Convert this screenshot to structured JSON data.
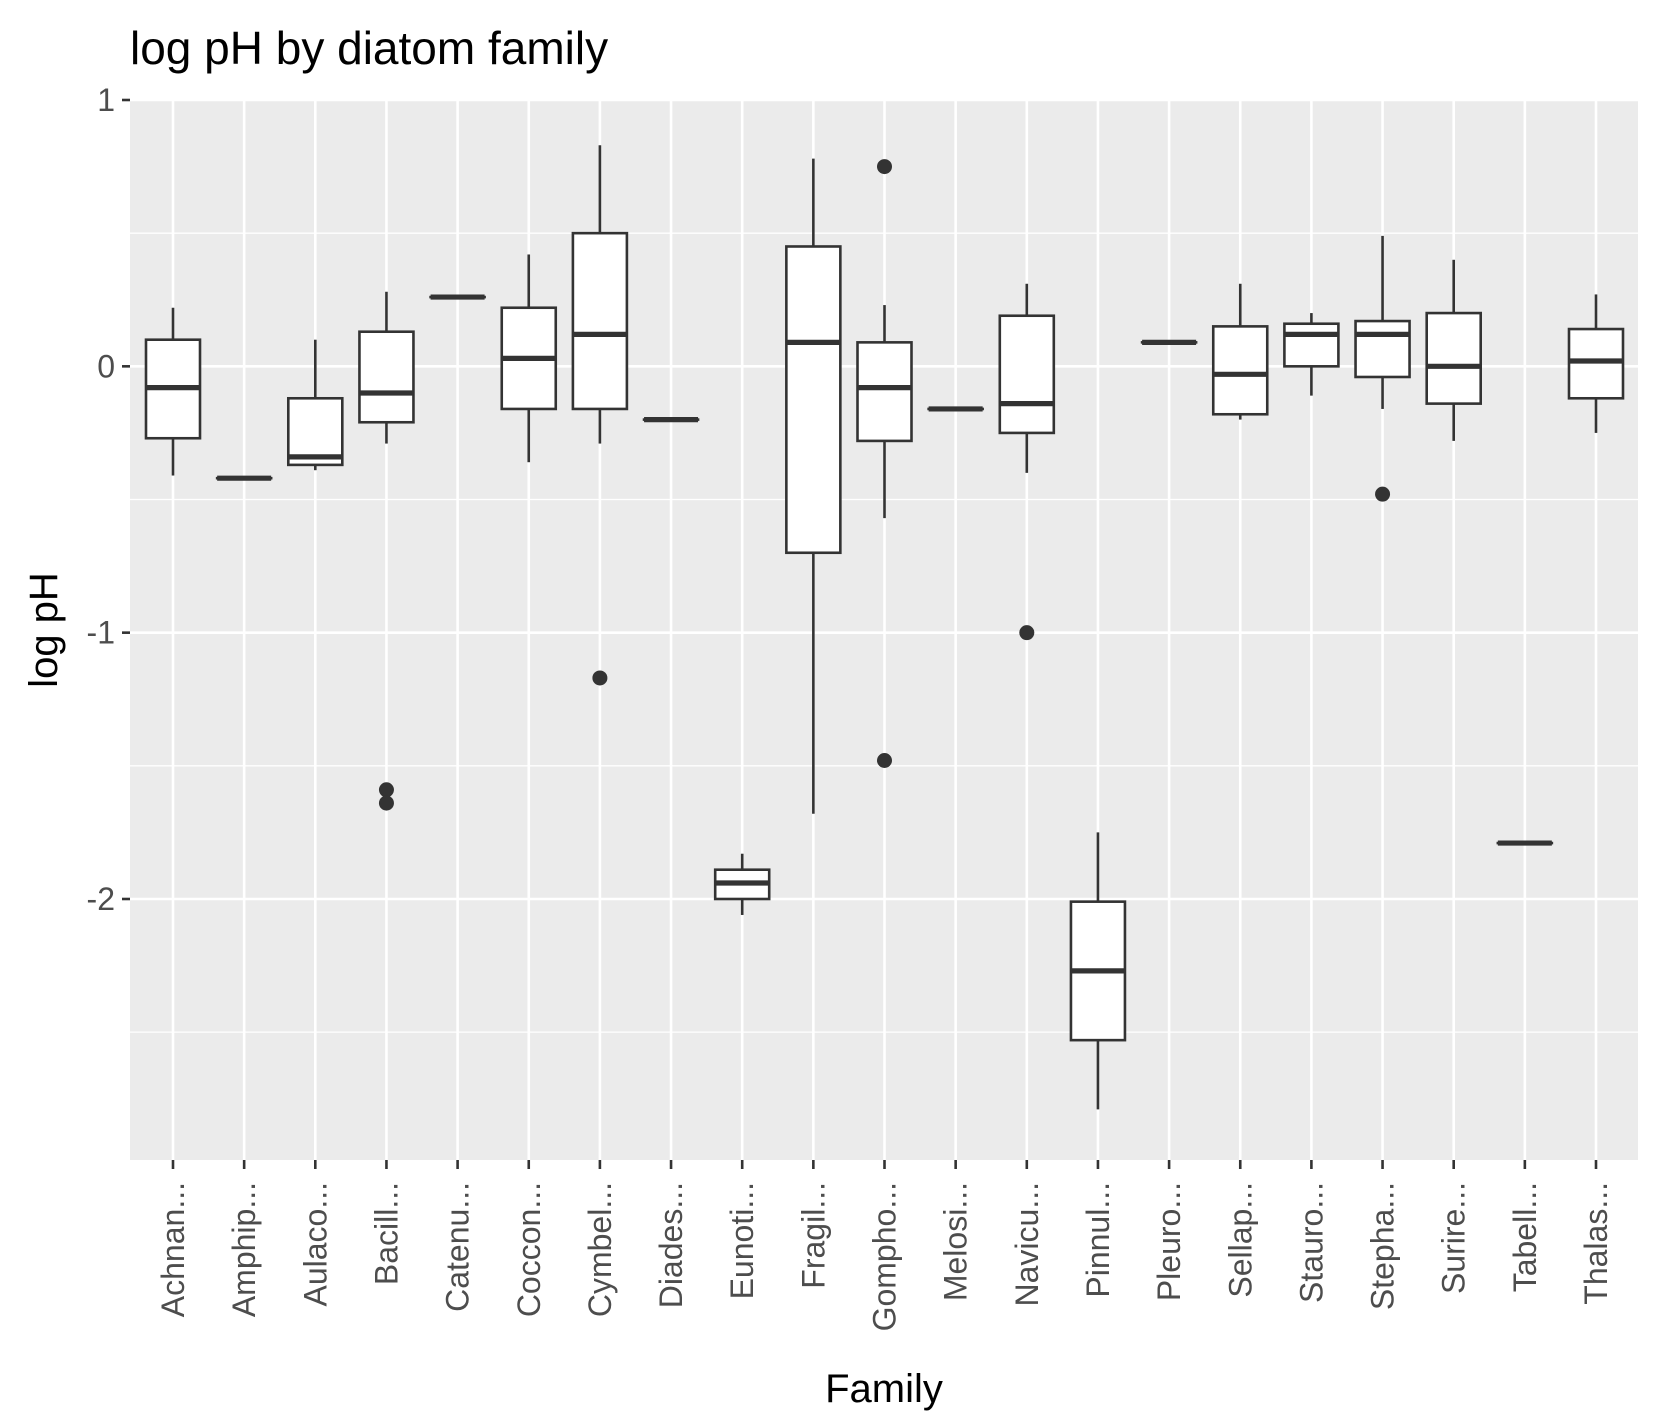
{
  "chart_data": {
    "type": "boxplot",
    "title": "log pH by diatom family",
    "xlabel": "Family",
    "ylabel": "log pH",
    "ylim": [
      -2.98,
      1.0
    ],
    "yticks": [
      1,
      0,
      -1,
      -2
    ],
    "ytick_labels": [
      "1",
      "0",
      "-1",
      "-2"
    ],
    "grid": true,
    "legend": "none",
    "colors": {
      "panel_background": "#ebebeb",
      "grid_major": "#ffffff",
      "box_fill": "#ffffff",
      "box_stroke": "#333333",
      "tick_text": "#4d4d4d"
    },
    "categories": [
      "Achnan...",
      "Amphip...",
      "Aulaco...",
      "Bacill...",
      "Catenu...",
      "Coccon...",
      "Cymbel...",
      "Diades...",
      "Eunoti...",
      "Fragil...",
      "Gompho...",
      "Melosi...",
      "Navicu...",
      "Pinnul...",
      "Pleuro...",
      "Sellap...",
      "Stauro...",
      "Stepha...",
      "Surire...",
      "Tabell...",
      "Thalas..."
    ],
    "boxes": [
      {
        "min": -0.41,
        "q1": -0.27,
        "median": -0.08,
        "q3": 0.1,
        "max": 0.22,
        "outliers": []
      },
      {
        "min": -0.42,
        "q1": -0.42,
        "median": -0.42,
        "q3": -0.42,
        "max": -0.42,
        "outliers": []
      },
      {
        "min": -0.39,
        "q1": -0.37,
        "median": -0.34,
        "q3": -0.12,
        "max": 0.1,
        "outliers": []
      },
      {
        "min": -0.29,
        "q1": -0.21,
        "median": -0.1,
        "q3": 0.13,
        "max": 0.28,
        "outliers": [
          -1.59,
          -1.64
        ]
      },
      {
        "min": 0.26,
        "q1": 0.26,
        "median": 0.26,
        "q3": 0.26,
        "max": 0.26,
        "outliers": []
      },
      {
        "min": -0.36,
        "q1": -0.16,
        "median": 0.03,
        "q3": 0.22,
        "max": 0.42,
        "outliers": []
      },
      {
        "min": -0.29,
        "q1": -0.16,
        "median": 0.12,
        "q3": 0.5,
        "max": 0.83,
        "outliers": [
          -1.17
        ]
      },
      {
        "min": -0.2,
        "q1": -0.2,
        "median": -0.2,
        "q3": -0.2,
        "max": -0.2,
        "outliers": []
      },
      {
        "min": -2.06,
        "q1": -2.0,
        "median": -1.94,
        "q3": -1.89,
        "max": -1.83,
        "outliers": []
      },
      {
        "min": -1.68,
        "q1": -0.7,
        "median": 0.09,
        "q3": 0.45,
        "max": 0.78,
        "outliers": []
      },
      {
        "min": -0.57,
        "q1": -0.28,
        "median": -0.08,
        "q3": 0.09,
        "max": 0.23,
        "outliers": [
          0.75,
          -1.48
        ]
      },
      {
        "min": -0.16,
        "q1": -0.16,
        "median": -0.16,
        "q3": -0.16,
        "max": -0.16,
        "outliers": []
      },
      {
        "min": -0.4,
        "q1": -0.25,
        "median": -0.14,
        "q3": 0.19,
        "max": 0.31,
        "outliers": [
          -1.0
        ]
      },
      {
        "min": -2.79,
        "q1": -2.53,
        "median": -2.27,
        "q3": -2.01,
        "max": -1.75,
        "outliers": []
      },
      {
        "min": 0.09,
        "q1": 0.09,
        "median": 0.09,
        "q3": 0.09,
        "max": 0.09,
        "outliers": []
      },
      {
        "min": -0.2,
        "q1": -0.18,
        "median": -0.03,
        "q3": 0.15,
        "max": 0.31,
        "outliers": []
      },
      {
        "min": -0.11,
        "q1": 0.0,
        "median": 0.12,
        "q3": 0.16,
        "max": 0.2,
        "outliers": []
      },
      {
        "min": -0.16,
        "q1": -0.04,
        "median": 0.12,
        "q3": 0.17,
        "max": 0.49,
        "outliers": [
          -0.48
        ]
      },
      {
        "min": -0.28,
        "q1": -0.14,
        "median": 0.0,
        "q3": 0.2,
        "max": 0.4,
        "outliers": []
      },
      {
        "min": -1.79,
        "q1": -1.79,
        "median": -1.79,
        "q3": -1.79,
        "max": -1.79,
        "outliers": []
      },
      {
        "min": -0.25,
        "q1": -0.12,
        "median": 0.02,
        "q3": 0.14,
        "max": 0.27,
        "outliers": []
      }
    ]
  }
}
